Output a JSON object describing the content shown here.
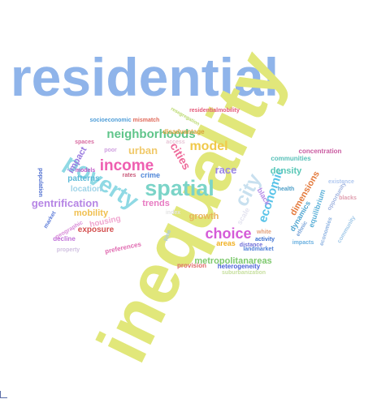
{
  "words": [
    {
      "text": "residential",
      "color": "#8fb4ea"
    },
    {
      "text": "inequality",
      "color": "#e1e77a"
    },
    {
      "text": "poverty",
      "color": "#8fd9e4"
    },
    {
      "text": "spatial",
      "color": "#7bd4c8"
    },
    {
      "text": "income",
      "color": "#ee5fb0"
    },
    {
      "text": "neighborhoods",
      "color": "#5fc58a"
    },
    {
      "text": "choice",
      "color": "#d55bd8"
    },
    {
      "text": "model",
      "color": "#f0c94a"
    },
    {
      "text": "city",
      "color": "#c8e0ef"
    },
    {
      "text": "economic",
      "color": "#58c3e8"
    },
    {
      "text": "cities",
      "color": "#ee6a9a"
    },
    {
      "text": "urban",
      "color": "#f0c96a"
    },
    {
      "text": "race",
      "color": "#9b86e8"
    },
    {
      "text": "growth",
      "color": "#e8b45a"
    },
    {
      "text": "metropolitanareas",
      "color": "#7ec96e"
    },
    {
      "text": "gentrification",
      "color": "#b685e5"
    },
    {
      "text": "mobility",
      "color": "#f0c050"
    },
    {
      "text": "trends",
      "color": "#e77ac2"
    },
    {
      "text": "crime",
      "color": "#4f86d8"
    },
    {
      "text": "density",
      "color": "#58c7b6"
    },
    {
      "text": "dimensions",
      "color": "#e47a3c"
    },
    {
      "text": "impact",
      "color": "#9a7ae0"
    },
    {
      "text": "patterns",
      "color": "#5bbad8"
    },
    {
      "text": "location",
      "color": "#9fd4e8"
    },
    {
      "text": "exposure",
      "color": "#d45050"
    },
    {
      "text": "housing",
      "color": "#f0a6cf"
    },
    {
      "text": "black",
      "color": "#b58be8"
    },
    {
      "text": "areas",
      "color": "#f0b020"
    },
    {
      "text": "distance",
      "color": "#6f6fd8"
    },
    {
      "text": "heterogeneity",
      "color": "#4d62d8"
    },
    {
      "text": "provision",
      "color": "#e06a6a"
    },
    {
      "text": "dynamics",
      "color": "#4fa5d0"
    },
    {
      "text": "equilibrium",
      "color": "#5ab0d8"
    },
    {
      "text": "concentration",
      "color": "#c95aa0"
    },
    {
      "text": "communities",
      "color": "#58c0b8"
    },
    {
      "text": "disadvantage",
      "color": "#d9a23c"
    },
    {
      "text": "residentialmobility",
      "color": "#e45a7a"
    },
    {
      "text": "socioeconomic",
      "color": "#4f9ed8"
    },
    {
      "text": "mismatch",
      "color": "#e06a5a"
    },
    {
      "text": "resegregation",
      "color": "#b8d86a"
    },
    {
      "text": "population",
      "color": "#4f6fd0"
    },
    {
      "text": "market",
      "color": "#5a7ad8"
    },
    {
      "text": "decline",
      "color": "#c070d8"
    },
    {
      "text": "preferences",
      "color": "#e06ab0"
    },
    {
      "text": "landmarket",
      "color": "#4f7fd8"
    },
    {
      "text": "activity",
      "color": "#3a6fd0"
    },
    {
      "text": "white",
      "color": "#e4a07a"
    },
    {
      "text": "scale",
      "color": "#e4e4f0"
    },
    {
      "text": "ethnic",
      "color": "#7aa4d8"
    },
    {
      "text": "impacts",
      "color": "#6ab0e0"
    },
    {
      "text": "health",
      "color": "#4fa0c8"
    },
    {
      "text": "spaces",
      "color": "#d86aa0"
    },
    {
      "text": "models",
      "color": "#c05ac8"
    },
    {
      "text": "rates",
      "color": "#c85a7a"
    },
    {
      "text": "geographic",
      "color": "#d88ad8"
    },
    {
      "text": "time",
      "color": "#a8c8e8"
    },
    {
      "text": "index",
      "color": "#e4e4e4"
    },
    {
      "text": "poor",
      "color": "#d0a0e0"
    },
    {
      "text": "access",
      "color": "#e8c8d8"
    },
    {
      "text": "opportunity",
      "color": "#a0b4e0"
    },
    {
      "text": "existence",
      "color": "#b0c8f0"
    },
    {
      "text": "economies",
      "color": "#8ab0e0"
    },
    {
      "text": "community",
      "color": "#a0c8e8"
    },
    {
      "text": "suburbanization",
      "color": "#c8e0a0"
    },
    {
      "text": "property",
      "color": "#d0c0e0"
    },
    {
      "text": "blacks",
      "color": "#e0a0b0"
    }
  ]
}
